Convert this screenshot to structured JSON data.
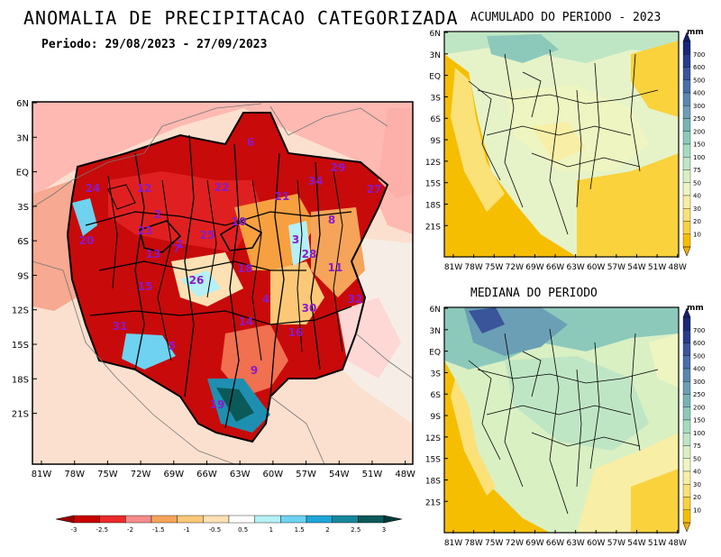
{
  "titles": {
    "main": "ANOMALIA DE PRECIPITACAO CATEGORIZADA",
    "period": "Periodo: 29/08/2023 - 27/09/2023",
    "accumulated": "ACUMULADO DO PERIODO - 2023",
    "median": "MEDIANA DO PERIODO"
  },
  "main_map": {
    "lat_labels": [
      "6N",
      "3N",
      "EQ",
      "3S",
      "6S",
      "9S",
      "12S",
      "15S",
      "18S",
      "21S"
    ],
    "lon_labels": [
      "81W",
      "78W",
      "75W",
      "72W",
      "69W",
      "66W",
      "63W",
      "60W",
      "57W",
      "54W",
      "51W",
      "48W"
    ],
    "basin_numbers": [
      {
        "id": "b6",
        "label": "6"
      },
      {
        "id": "b24",
        "label": "24"
      },
      {
        "id": "b12",
        "label": "12"
      },
      {
        "id": "b22",
        "label": "22"
      },
      {
        "id": "b21",
        "label": "21"
      },
      {
        "id": "b34",
        "label": "34"
      },
      {
        "id": "b29",
        "label": "29"
      },
      {
        "id": "b27",
        "label": "27"
      },
      {
        "id": "b2",
        "label": "2"
      },
      {
        "id": "b10",
        "label": "10"
      },
      {
        "id": "b20",
        "label": "20"
      },
      {
        "id": "b25",
        "label": "25"
      },
      {
        "id": "b23",
        "label": "23"
      },
      {
        "id": "b7",
        "label": "7"
      },
      {
        "id": "b1",
        "label": "1"
      },
      {
        "id": "b13",
        "label": "13"
      },
      {
        "id": "b3",
        "label": "3"
      },
      {
        "id": "b8",
        "label": "8"
      },
      {
        "id": "b28",
        "label": "28"
      },
      {
        "id": "b11",
        "label": "11"
      },
      {
        "id": "b18",
        "label": "18"
      },
      {
        "id": "b26",
        "label": "26"
      },
      {
        "id": "b15",
        "label": "15"
      },
      {
        "id": "b4",
        "label": "4"
      },
      {
        "id": "b32",
        "label": "32"
      },
      {
        "id": "b30",
        "label": "30"
      },
      {
        "id": "b31",
        "label": "31"
      },
      {
        "id": "b14",
        "label": "14"
      },
      {
        "id": "b16",
        "label": "16"
      },
      {
        "id": "b5",
        "label": "5"
      },
      {
        "id": "b9",
        "label": "9"
      },
      {
        "id": "b19",
        "label": "19"
      }
    ]
  },
  "side_maps": {
    "lat_labels": [
      "6N",
      "3N",
      "EQ",
      "3S",
      "6S",
      "9S",
      "12S",
      "15S",
      "18S",
      "21S"
    ],
    "lon_labels": [
      "81W",
      "78W",
      "75W",
      "72W",
      "69W",
      "66W",
      "63W",
      "60W",
      "57W",
      "54W",
      "51W",
      "48W"
    ]
  },
  "anomaly_colorbar": {
    "labels": [
      "-3",
      "-2.5",
      "-2",
      "-1.5",
      "-1",
      "-0.5",
      "0.5",
      "1",
      "1.5",
      "2",
      "2.5",
      "3"
    ],
    "colors": [
      "#c80000",
      "#ea2a2a",
      "#f58c8c",
      "#f5a45a",
      "#fcc878",
      "#fde1b4",
      "#ffffff",
      "#b4f0f5",
      "#6ed2f0",
      "#1ea5d7",
      "#17879b",
      "#0a5a5a"
    ]
  },
  "mm_colorbar": {
    "unit": "mm",
    "labels": [
      "10",
      "20",
      "30",
      "40",
      "50",
      "75",
      "100",
      "150",
      "200",
      "250",
      "300",
      "400",
      "500",
      "600",
      "700"
    ],
    "colors": [
      "#f5be00",
      "#f9d23c",
      "#fae178",
      "#f8eea5",
      "#eef5c0",
      "#d9f0c3",
      "#bfe6c4",
      "#a5dcc0",
      "#8cc9bb",
      "#78b4b4",
      "#6b9fb5",
      "#5a87b0",
      "#4a6ea8",
      "#3a559a",
      "#283c8c",
      "#1a2878"
    ]
  }
}
